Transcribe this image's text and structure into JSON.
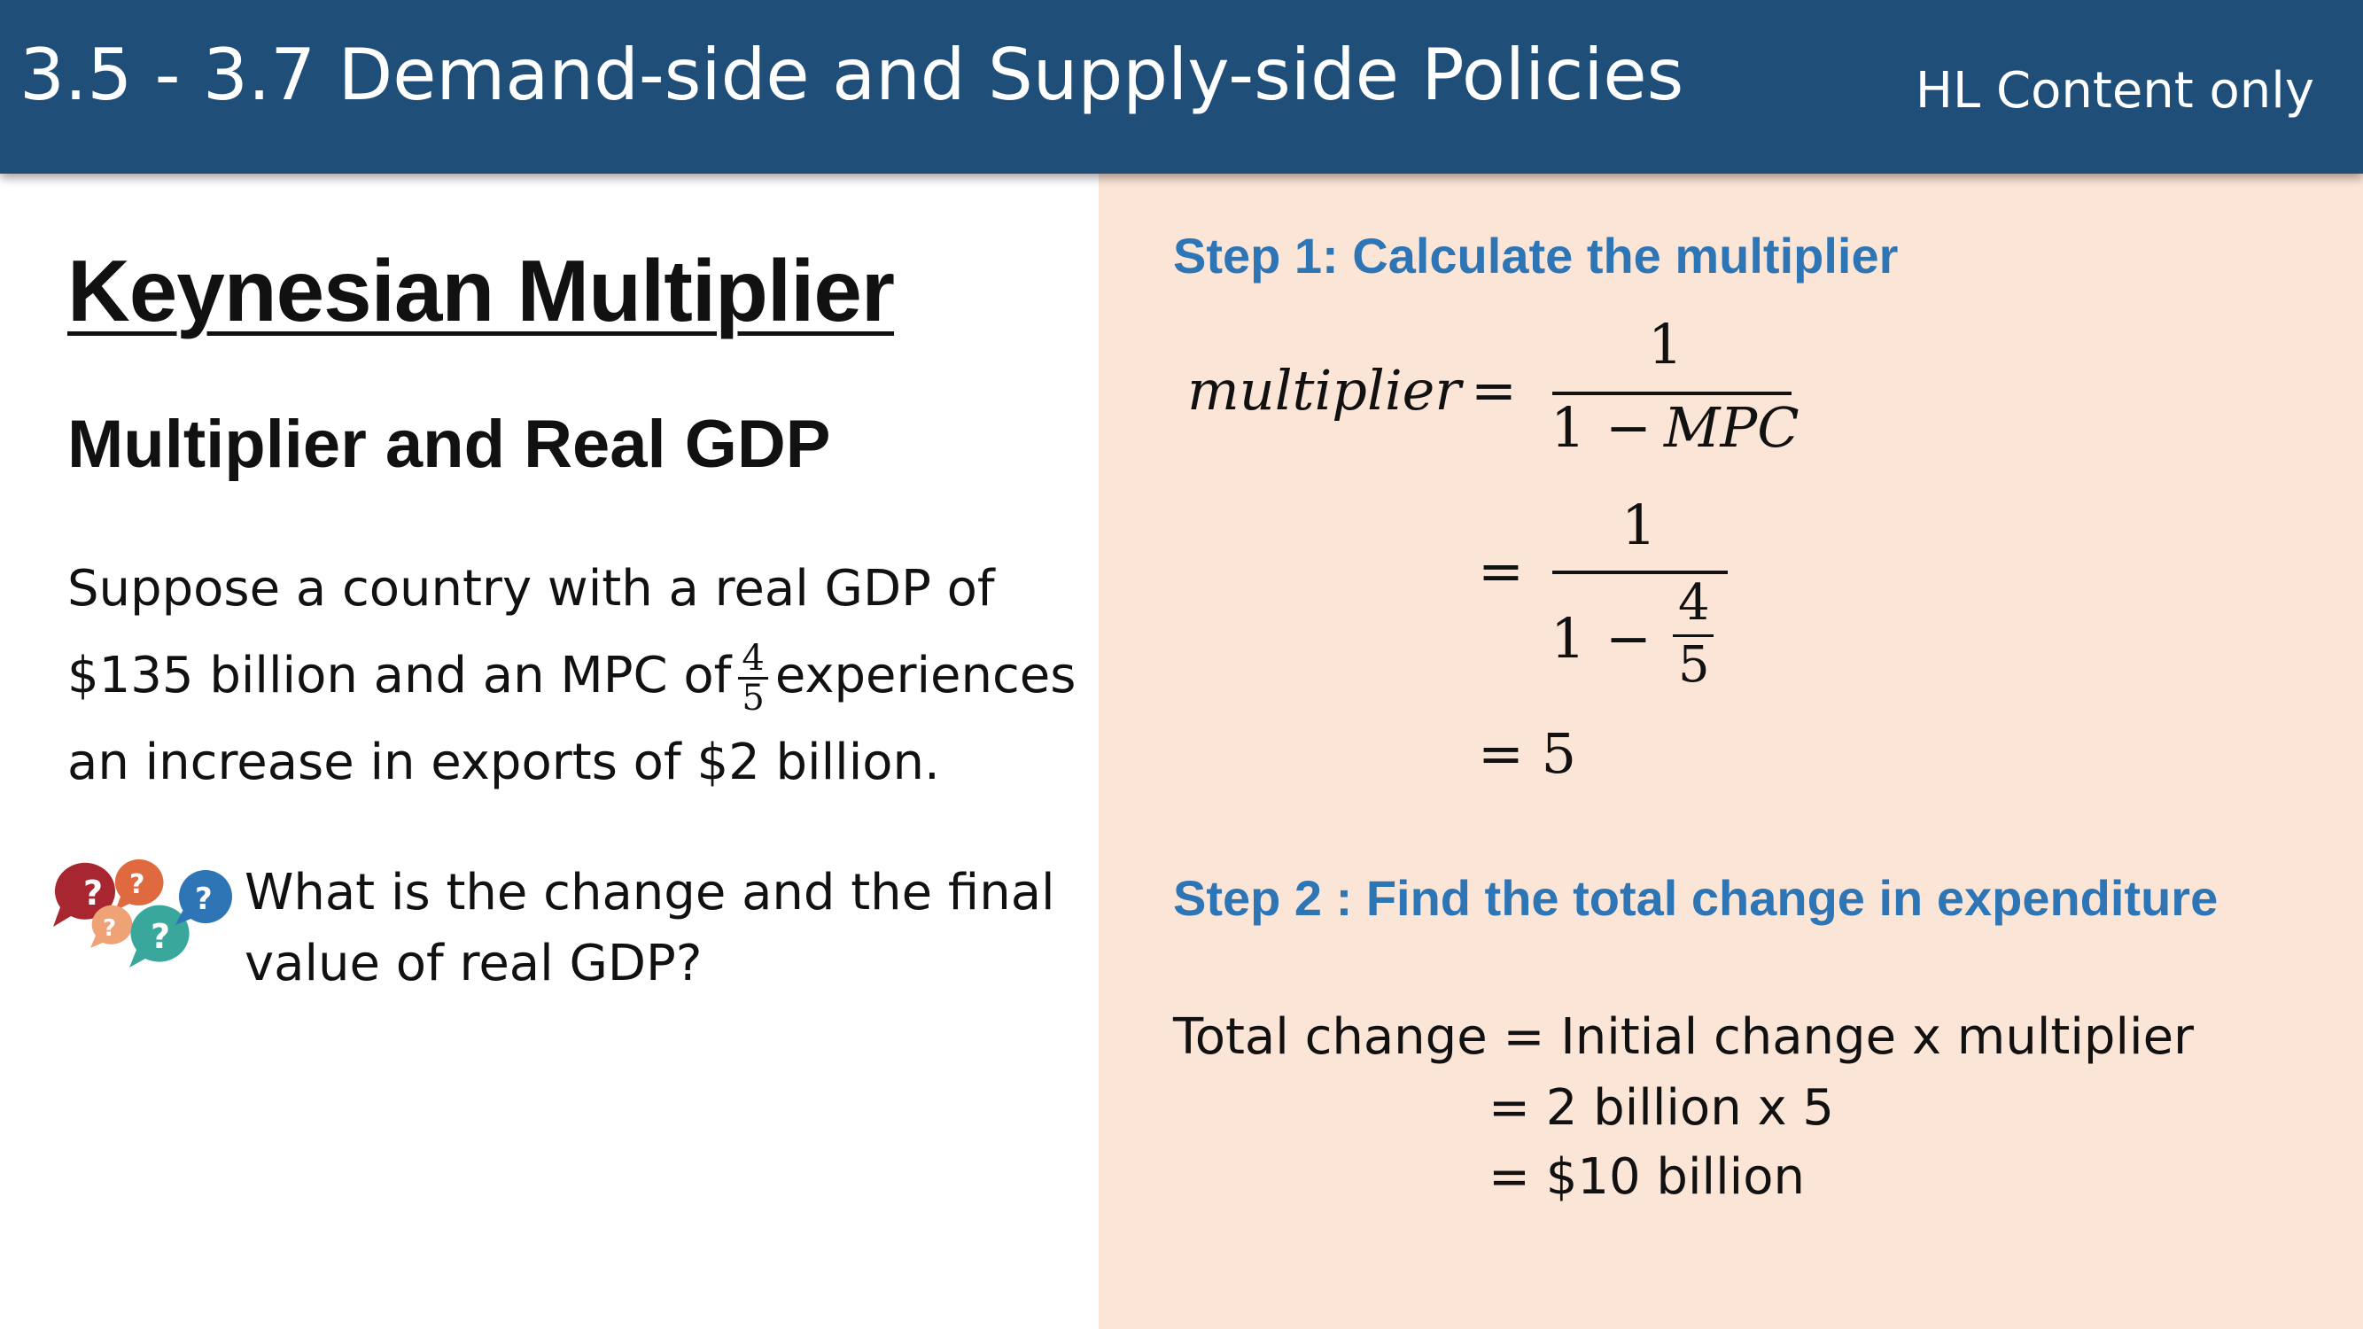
{
  "header": {
    "title": "3.5 - 3.7 Demand-side and Supply-side Policies",
    "tag": "HL Content only"
  },
  "left": {
    "title": "Keynesian Multiplier",
    "subtitle": "Multiplier and Real GDP",
    "paragraph": {
      "line1": "Suppose a country with a real GDP of",
      "line2_before": "$135 billion and an MPC of",
      "mpc_num": "4",
      "mpc_den": "5",
      "line2_after": "experiences",
      "line3": "an increase in exports of $2 billion."
    },
    "question": "What is the change and the final value of real GDP?"
  },
  "right": {
    "step1": "Step 1: Calculate the multiplier",
    "formula": {
      "lhs": "multiplier",
      "eq": "=",
      "num": "1",
      "den_one": "1",
      "minus": "−",
      "den_var": "MPC"
    },
    "sub": {
      "eq": "=",
      "num": "1",
      "den_one": "1",
      "minus": "−",
      "frac_num": "4",
      "frac_den": "5"
    },
    "result": "= 5",
    "step2": "Step 2 : Find the total change in expenditure",
    "calc": {
      "line1": "Total change = Initial change x multiplier",
      "line2": "= 2 billion x 5",
      "line3": "= $10 billion"
    }
  },
  "colors": {
    "header_bg": "#1f4e79",
    "panel_bg": "#fbe5d6",
    "step_blue": "#2e75b6"
  },
  "icons": [
    "question-bubbles-icon"
  ]
}
